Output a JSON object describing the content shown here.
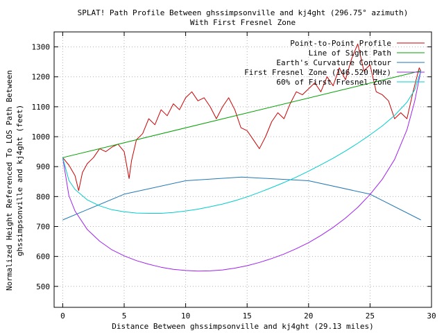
{
  "chart_data": {
    "type": "line",
    "title": "SPLAT! Path Profile Between ghssimpsonville and kj4ght (296.75° azimuth)",
    "subtitle": "With First Fresnel Zone",
    "xlabel": "Distance Between ghssimpsonville and kj4ght (29.13 miles)",
    "ylabel_line1": "Normalized Height Referenced To LOS Path Between",
    "ylabel_line2": "ghssimpsonville and kj4ght (feet)",
    "xlim": [
      -0.7,
      30
    ],
    "ylim": [
      430,
      1350
    ],
    "x_ticks": [
      0,
      5,
      10,
      15,
      20,
      25,
      30
    ],
    "y_ticks": [
      500,
      600,
      700,
      800,
      900,
      1000,
      1100,
      1200,
      1300
    ],
    "grid": true,
    "legend_position": "top-right",
    "series": [
      {
        "name": "Point-to-Point Profile",
        "color": "#cc0000",
        "x": [
          0,
          0.5,
          1.0,
          1.3,
          1.6,
          2.0,
          2.5,
          3.0,
          3.5,
          4.0,
          4.5,
          5.0,
          5.4,
          5.6,
          6.0,
          6.5,
          7.0,
          7.5,
          8.0,
          8.5,
          9.0,
          9.5,
          10.0,
          10.5,
          11.0,
          11.5,
          12.0,
          12.5,
          13.0,
          13.5,
          14.0,
          14.5,
          15.0,
          15.5,
          16.0,
          16.5,
          17.0,
          17.5,
          18.0,
          18.5,
          19.0,
          19.5,
          20.0,
          20.5,
          21.0,
          21.5,
          22.0,
          22.5,
          23.0,
          23.5,
          24.0,
          24.5,
          25.0,
          25.5,
          26.0,
          26.5,
          27.0,
          27.5,
          28.0,
          28.5,
          29.0,
          29.13
        ],
        "y": [
          930,
          905,
          870,
          820,
          880,
          910,
          930,
          960,
          950,
          965,
          975,
          950,
          860,
          920,
          990,
          1010,
          1060,
          1040,
          1090,
          1070,
          1110,
          1090,
          1130,
          1150,
          1120,
          1130,
          1100,
          1060,
          1100,
          1130,
          1090,
          1030,
          1020,
          990,
          960,
          1000,
          1050,
          1080,
          1060,
          1110,
          1150,
          1140,
          1160,
          1180,
          1150,
          1200,
          1170,
          1230,
          1190,
          1260,
          1310,
          1220,
          1240,
          1150,
          1140,
          1120,
          1060,
          1080,
          1060,
          1150,
          1230,
          1220
        ]
      },
      {
        "name": "Line of Sight Path",
        "color": "#00a000",
        "x": [
          0,
          29.13
        ],
        "y": [
          930,
          1220
        ]
      },
      {
        "name": "Earth's Curvature Contour",
        "color": "#1f77b4",
        "x": [
          0,
          5,
          10,
          14.56,
          20,
          25,
          29.13
        ],
        "y": [
          722,
          808,
          853,
          865,
          853,
          808,
          722
        ]
      },
      {
        "name": "First Fresnel Zone (146.520 MHz)",
        "color": "#a020f0",
        "x": [
          0,
          0.5,
          1,
          2,
          3,
          4,
          5,
          6,
          7,
          8,
          9,
          10,
          11,
          12,
          13,
          14,
          15,
          16,
          17,
          18,
          19,
          20,
          21,
          22,
          23,
          24,
          25,
          26,
          27,
          28,
          28.63,
          29.13
        ],
        "y": [
          930,
          803,
          752,
          690,
          651,
          622,
          602,
          586,
          574,
          564,
          557,
          553,
          551,
          552,
          555,
          561,
          569,
          580,
          593,
          608,
          626,
          646,
          670,
          697,
          728,
          764,
          807,
          858,
          924,
          1023,
          1118,
          1220
        ]
      },
      {
        "name": "60% of First Fresnel Zone",
        "color": "#00cccc",
        "x": [
          0,
          0.5,
          1,
          2,
          3,
          4,
          5,
          6,
          7,
          8,
          9,
          10,
          11,
          12,
          13,
          14,
          15,
          16,
          17,
          18,
          19,
          20,
          21,
          22,
          23,
          24,
          25,
          26,
          27,
          28,
          28.63,
          29.13
        ],
        "y": [
          930,
          854,
          824,
          789,
          769,
          756,
          749,
          745,
          744,
          744,
          747,
          752,
          758,
          766,
          775,
          786,
          799,
          814,
          830,
          847,
          865,
          885,
          906,
          928,
          952,
          978,
          1006,
          1036,
          1071,
          1115,
          1156,
          1220
        ]
      }
    ]
  }
}
